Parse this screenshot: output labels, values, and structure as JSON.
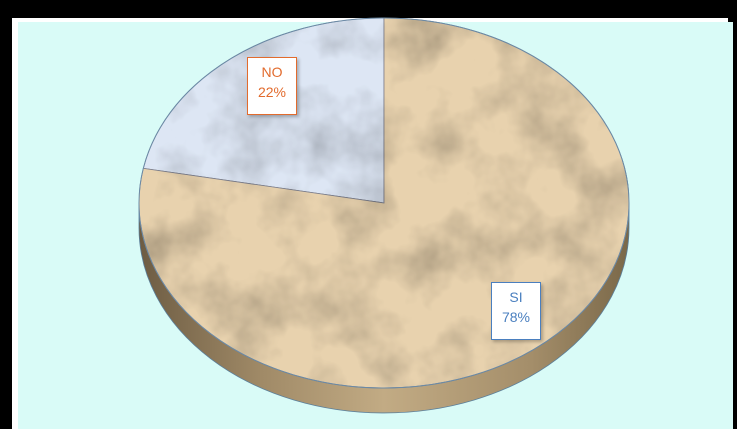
{
  "chart_data": {
    "type": "pie",
    "title": "",
    "categories": [
      "NO",
      "SI"
    ],
    "values": [
      22,
      78
    ],
    "labels": [
      "NO",
      "SI"
    ],
    "percent_labels": [
      "22%",
      "78%"
    ],
    "three_d": true,
    "legend": "none",
    "colors": [
      "#dde6f4",
      "#e8d2ae"
    ],
    "label_colors": [
      "#e26b2d",
      "#4a7fbf"
    ],
    "background": "#d9fbf7"
  }
}
